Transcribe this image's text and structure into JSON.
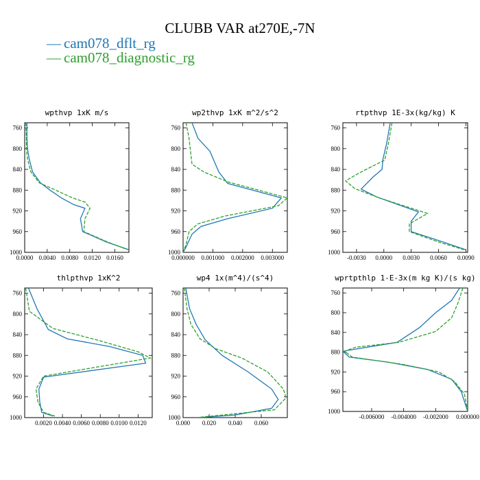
{
  "figure": {
    "title": "CLUBB VAR at270E,-7N",
    "legend": [
      {
        "name": "cam078_dflt_rg",
        "color": "#1f77b4",
        "dash": "solid"
      },
      {
        "name": "cam078_diagnostic_rg",
        "color": "#2ca02c",
        "dash": "dashed"
      }
    ]
  },
  "chart_data": [
    {
      "type": "line",
      "title": "wpthvp  1xK m/s",
      "xlim": [
        0.0,
        0.0185
      ],
      "ylim": [
        1000,
        750
      ],
      "xticks": [
        0,
        0.004,
        0.008,
        0.012,
        0.016
      ],
      "xtick_labels": [
        "0.0000",
        "0.0040",
        "0.0080",
        "0.0120",
        "0.0160"
      ],
      "yticks": [
        760,
        800,
        840,
        880,
        920,
        960,
        1000
      ],
      "series": [
        {
          "name": "cam078_dflt_rg",
          "points": [
            [
              0.0004,
              750
            ],
            [
              0.0004,
              780
            ],
            [
              0.0005,
              800
            ],
            [
              0.0008,
              820
            ],
            [
              0.0014,
              845
            ],
            [
              0.0028,
              866
            ],
            [
              0.0045,
              880
            ],
            [
              0.0065,
              895
            ],
            [
              0.0087,
              908
            ],
            [
              0.0107,
              915
            ],
            [
              0.0099,
              935
            ],
            [
              0.0103,
              960
            ],
            [
              0.0145,
              980
            ],
            [
              0.0185,
              995
            ]
          ]
        },
        {
          "name": "cam078_diagnostic_rg",
          "points": [
            [
              0.0002,
              750
            ],
            [
              0.0003,
              780
            ],
            [
              0.0003,
              800
            ],
            [
              0.0005,
              820
            ],
            [
              0.0011,
              845
            ],
            [
              0.0026,
              866
            ],
            [
              0.0055,
              880
            ],
            [
              0.0085,
              895
            ],
            [
              0.0107,
              903
            ],
            [
              0.0116,
              915
            ],
            [
              0.0107,
              935
            ],
            [
              0.0105,
              960
            ],
            [
              0.0147,
              980
            ],
            [
              0.0183,
              995
            ]
          ]
        }
      ]
    },
    {
      "type": "line",
      "title": "wp2thvp  1xK m^2/s^2",
      "xlim": [
        0.0,
        0.0035
      ],
      "ylim": [
        1000,
        750
      ],
      "xticks": [
        0,
        0.001,
        0.002,
        0.003
      ],
      "xtick_labels": [
        "0.000000",
        "0.001000",
        "0.002000",
        "0.003000"
      ],
      "yticks": [
        760,
        800,
        840,
        880,
        920,
        960,
        1000
      ],
      "series": [
        {
          "name": "cam078_dflt_rg",
          "points": [
            [
              0.0003,
              750
            ],
            [
              0.0005,
              780
            ],
            [
              0.0009,
              805
            ],
            [
              0.0012,
              845
            ],
            [
              0.0015,
              867
            ],
            [
              0.0033,
              895
            ],
            [
              0.003,
              915
            ],
            [
              0.0015,
              935
            ],
            [
              0.0006,
              950
            ],
            [
              0.0003,
              965
            ],
            [
              0.0001,
              990
            ],
            [
              0.0,
              1000
            ]
          ]
        },
        {
          "name": "cam078_diagnostic_rg",
          "points": [
            [
              0.0001,
              750
            ],
            [
              0.0002,
              780
            ],
            [
              0.0003,
              830
            ],
            [
              0.0007,
              845
            ],
            [
              0.0015,
              864
            ],
            [
              0.0035,
              895
            ],
            [
              0.0032,
              910
            ],
            [
              0.0014,
              930
            ],
            [
              0.0005,
              945
            ],
            [
              0.0002,
              960
            ],
            [
              0.0001,
              985
            ],
            [
              0.0,
              1000
            ]
          ]
        }
      ]
    },
    {
      "type": "line",
      "title": "rtpthvp  1E-3x(kg/kg) K",
      "xlim": [
        -0.0045,
        0.0092
      ],
      "ylim": [
        1000,
        750
      ],
      "xticks": [
        -0.003,
        0.0,
        0.003,
        0.006,
        0.009
      ],
      "xtick_labels": [
        "-0.0030",
        "0.0000",
        "0.0030",
        "0.0060",
        "0.0090"
      ],
      "yticks": [
        760,
        800,
        840,
        880,
        920,
        960,
        1000
      ],
      "series": [
        {
          "name": "cam078_dflt_rg",
          "points": [
            [
              0.0007,
              750
            ],
            [
              0.0003,
              790
            ],
            [
              -0.0001,
              820
            ],
            [
              -0.0002,
              840
            ],
            [
              -0.0012,
              855
            ],
            [
              -0.0025,
              878
            ],
            [
              -0.0008,
              893
            ],
            [
              0.0038,
              922
            ],
            [
              0.003,
              940
            ],
            [
              0.003,
              960
            ],
            [
              0.0065,
              980
            ],
            [
              0.009,
              995
            ]
          ]
        },
        {
          "name": "cam078_diagnostic_rg",
          "points": [
            [
              0.0009,
              750
            ],
            [
              0.0005,
              790
            ],
            [
              0.0001,
              822
            ],
            [
              -0.0025,
              845
            ],
            [
              -0.0042,
              862
            ],
            [
              -0.0032,
              877
            ],
            [
              -0.0005,
              895
            ],
            [
              0.0048,
              925
            ],
            [
              0.0028,
              945
            ],
            [
              0.0028,
              960
            ],
            [
              0.006,
              980
            ],
            [
              0.0088,
              995
            ]
          ]
        }
      ]
    },
    {
      "type": "line",
      "title": "thlpthvp  1xK^2",
      "xlim": [
        0.0,
        0.0135
      ],
      "ylim": [
        1000,
        750
      ],
      "xticks": [
        0.002,
        0.004,
        0.006,
        0.008,
        0.01,
        0.012
      ],
      "xtick_labels": [
        "0.0020",
        "0.0040",
        "0.0060",
        "0.0080",
        "0.0100",
        "0.0120"
      ],
      "yticks": [
        760,
        800,
        840,
        880,
        920,
        960,
        1000
      ],
      "series": [
        {
          "name": "cam078_dflt_rg",
          "points": [
            [
              0.0004,
              750
            ],
            [
              0.0013,
              790
            ],
            [
              0.0025,
              830
            ],
            [
              0.0045,
              848
            ],
            [
              0.009,
              863
            ],
            [
              0.0125,
              880
            ],
            [
              0.0128,
              895
            ],
            [
              0.002,
              922
            ],
            [
              0.0015,
              945
            ],
            [
              0.0016,
              970
            ],
            [
              0.0018,
              990
            ],
            [
              0.003,
              997
            ]
          ]
        },
        {
          "name": "cam078_diagnostic_rg",
          "points": [
            [
              0.0001,
              750
            ],
            [
              0.0005,
              795
            ],
            [
              0.003,
              828
            ],
            [
              0.008,
              852
            ],
            [
              0.012,
              873
            ],
            [
              0.0133,
              885
            ],
            [
              0.002,
              920
            ],
            [
              0.0012,
              945
            ],
            [
              0.0014,
              970
            ],
            [
              0.002,
              990
            ],
            [
              0.0032,
              997
            ]
          ]
        }
      ]
    },
    {
      "type": "line",
      "title": "wp4  1x(m^4)/(s^4)",
      "xlim": [
        0.0,
        0.08
      ],
      "ylim": [
        1000,
        750
      ],
      "xticks": [
        0,
        0.02,
        0.04,
        0.06
      ],
      "xtick_labels": [
        "0.000",
        "0.020",
        "0.040",
        "0.060"
      ],
      "yticks": [
        760,
        800,
        840,
        880,
        920,
        960,
        1000
      ],
      "series": [
        {
          "name": "cam078_dflt_rg",
          "points": [
            [
              0.002,
              750
            ],
            [
              0.005,
              790
            ],
            [
              0.01,
              820
            ],
            [
              0.017,
              850
            ],
            [
              0.03,
              880
            ],
            [
              0.05,
              912
            ],
            [
              0.068,
              945
            ],
            [
              0.073,
              965
            ],
            [
              0.068,
              982
            ],
            [
              0.04,
              995
            ],
            [
              0.012,
              1000
            ]
          ]
        },
        {
          "name": "cam078_diagnostic_rg",
          "points": [
            [
              0.001,
              750
            ],
            [
              0.003,
              790
            ],
            [
              0.006,
              820
            ],
            [
              0.013,
              848
            ],
            [
              0.025,
              867
            ],
            [
              0.045,
              885
            ],
            [
              0.065,
              912
            ],
            [
              0.077,
              945
            ],
            [
              0.079,
              962
            ],
            [
              0.07,
              985
            ],
            [
              0.01,
              1000
            ]
          ]
        }
      ]
    },
    {
      "type": "line",
      "title": "wprtpthlp  1-E-3x(m kg K)/(s kg)",
      "xlim": [
        -0.0078,
        0.0
      ],
      "ylim": [
        1000,
        750
      ],
      "xticks": [
        -0.006,
        -0.004,
        -0.002,
        0.0
      ],
      "xtick_labels": [
        "-0.006000",
        "-0.004000",
        "-0.002000",
        "0.000000"
      ],
      "yticks": [
        760,
        800,
        840,
        880,
        920,
        960,
        1000
      ],
      "series": [
        {
          "name": "cam078_dflt_rg",
          "points": [
            [
              -0.0005,
              750
            ],
            [
              -0.001,
              775
            ],
            [
              -0.002,
              800
            ],
            [
              -0.003,
              830
            ],
            [
              -0.0044,
              860
            ],
            [
              -0.0078,
              878
            ],
            [
              -0.0074,
              890
            ],
            [
              -0.005,
              900
            ],
            [
              -0.0025,
              915
            ],
            [
              -0.001,
              935
            ],
            [
              -0.0004,
              960
            ],
            [
              0.0,
              1000
            ]
          ]
        },
        {
          "name": "cam078_diagnostic_rg",
          "points": [
            [
              -0.0003,
              750
            ],
            [
              -0.0006,
              780
            ],
            [
              -0.001,
              810
            ],
            [
              -0.002,
              838
            ],
            [
              -0.0043,
              860
            ],
            [
              -0.007,
              870
            ],
            [
              -0.0077,
              878
            ],
            [
              -0.0072,
              890
            ],
            [
              -0.004,
              905
            ],
            [
              -0.0018,
              920
            ],
            [
              -0.0008,
              940
            ],
            [
              -0.0002,
              965
            ],
            [
              0.0,
              1000
            ]
          ]
        }
      ]
    }
  ]
}
